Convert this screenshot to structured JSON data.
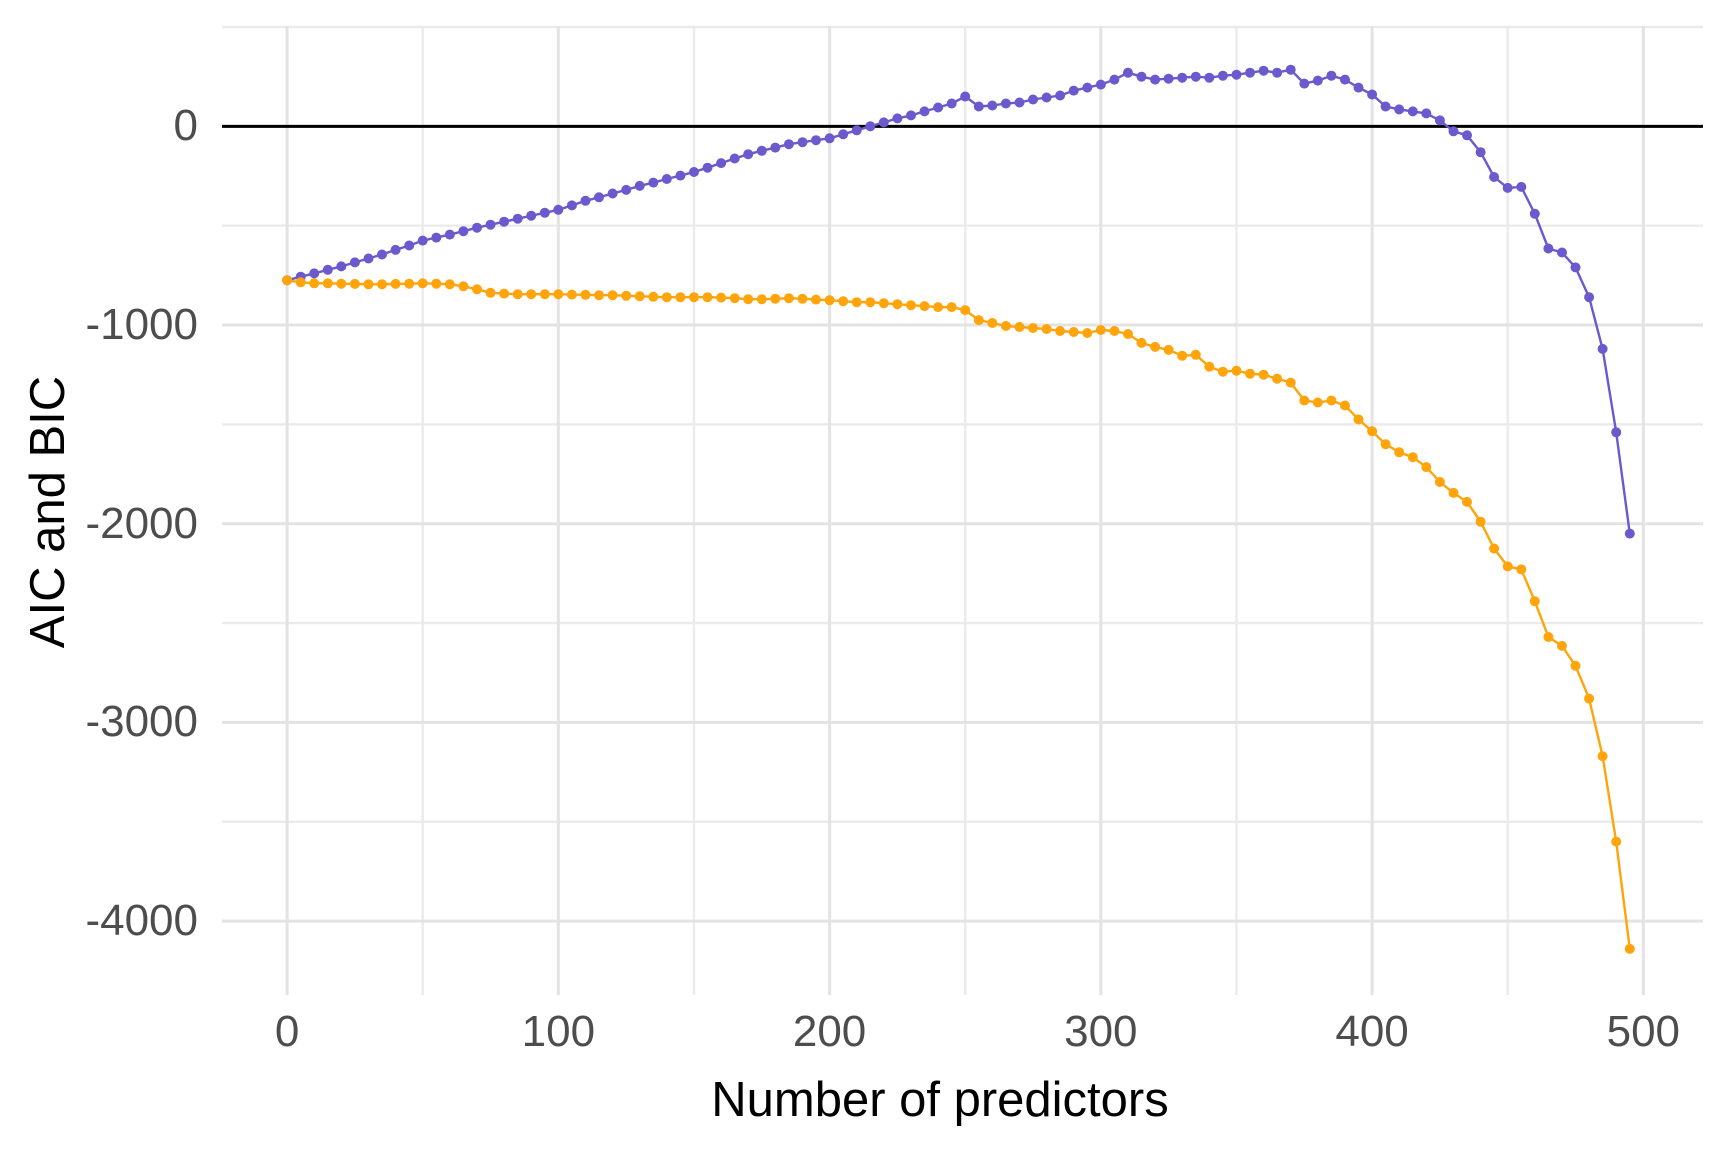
{
  "chart_data": {
    "type": "line",
    "title": "",
    "xlabel": "Number of predictors",
    "ylabel": "AIC and BIC",
    "grid": true,
    "legend": "none",
    "hline": 0,
    "xlim": [
      -24,
      522
    ],
    "ylim": [
      -4372,
      505
    ],
    "x_ticks": [
      {
        "value": 0,
        "label": "0"
      },
      {
        "value": 100,
        "label": "100"
      },
      {
        "value": 200,
        "label": "200"
      },
      {
        "value": 300,
        "label": "300"
      },
      {
        "value": 400,
        "label": "400"
      },
      {
        "value": 500,
        "label": "500"
      }
    ],
    "y_ticks": [
      {
        "value": 0,
        "label": "0"
      },
      {
        "value": -1000,
        "label": "-1000"
      },
      {
        "value": -2000,
        "label": "-2000"
      },
      {
        "value": -3000,
        "label": "-3000"
      },
      {
        "value": -4000,
        "label": "-4000"
      }
    ],
    "x_minor": [
      50,
      150,
      250,
      350,
      450
    ],
    "y_minor": [
      500,
      -500,
      -1500,
      -2500,
      -3500
    ],
    "style": {
      "background": "#ffffff",
      "grid_major": "#e3e3e3",
      "grid_minor": "#ebebeb",
      "axis_text": "#4d4d4d",
      "axis_title": "#000000",
      "zero_line": "#000000"
    },
    "x": [
      0,
      5,
      10,
      15,
      20,
      25,
      30,
      35,
      40,
      45,
      50,
      55,
      60,
      65,
      70,
      75,
      80,
      85,
      90,
      95,
      100,
      105,
      110,
      115,
      120,
      125,
      130,
      135,
      140,
      145,
      150,
      155,
      160,
      165,
      170,
      175,
      180,
      185,
      190,
      195,
      200,
      205,
      210,
      215,
      220,
      225,
      230,
      235,
      240,
      245,
      250,
      255,
      260,
      265,
      270,
      275,
      280,
      285,
      290,
      295,
      300,
      305,
      310,
      315,
      320,
      325,
      330,
      335,
      340,
      345,
      350,
      355,
      360,
      365,
      370,
      375,
      380,
      385,
      390,
      395,
      400,
      405,
      410,
      415,
      420,
      425,
      430,
      435,
      440,
      445,
      450,
      455,
      460,
      465,
      470,
      475,
      480,
      485,
      490,
      495
    ],
    "series": [
      {
        "name": "AIC",
        "color": "#6A5ACD",
        "values": [
          -775,
          -757,
          -740,
          -722,
          -705,
          -685,
          -665,
          -645,
          -622,
          -600,
          -575,
          -560,
          -545,
          -528,
          -510,
          -495,
          -480,
          -465,
          -450,
          -435,
          -420,
          -398,
          -375,
          -357,
          -338,
          -320,
          -300,
          -283,
          -265,
          -248,
          -230,
          -208,
          -185,
          -162,
          -140,
          -123,
          -107,
          -90,
          -80,
          -70,
          -60,
          -40,
          -20,
          0,
          20,
          40,
          55,
          75,
          95,
          115,
          150,
          100,
          105,
          115,
          120,
          135,
          145,
          155,
          180,
          195,
          210,
          235,
          270,
          250,
          235,
          240,
          245,
          250,
          245,
          255,
          260,
          270,
          280,
          270,
          285,
          215,
          230,
          255,
          235,
          195,
          160,
          100,
          85,
          75,
          65,
          30,
          -25,
          -45,
          -130,
          -255,
          -310,
          -305,
          -440,
          -615,
          -635,
          -710,
          -860,
          -1120,
          -1540,
          -2050
        ]
      },
      {
        "name": "BIC",
        "color": "#FFA40B",
        "values": [
          -775,
          -785,
          -790,
          -790,
          -792,
          -793,
          -795,
          -795,
          -793,
          -792,
          -790,
          -792,
          -795,
          -805,
          -820,
          -838,
          -842,
          -845,
          -845,
          -845,
          -845,
          -847,
          -848,
          -850,
          -850,
          -853,
          -855,
          -858,
          -860,
          -860,
          -860,
          -860,
          -862,
          -865,
          -870,
          -870,
          -868,
          -865,
          -868,
          -872,
          -875,
          -880,
          -885,
          -885,
          -890,
          -895,
          -900,
          -905,
          -910,
          -910,
          -925,
          -975,
          -990,
          -1005,
          -1010,
          -1015,
          -1020,
          -1030,
          -1035,
          -1040,
          -1025,
          -1030,
          -1045,
          -1090,
          -1110,
          -1125,
          -1155,
          -1150,
          -1210,
          -1235,
          -1230,
          -1245,
          -1250,
          -1270,
          -1290,
          -1380,
          -1390,
          -1380,
          -1405,
          -1475,
          -1535,
          -1600,
          -1640,
          -1665,
          -1715,
          -1790,
          -1845,
          -1890,
          -1990,
          -2125,
          -2215,
          -2230,
          -2390,
          -2570,
          -2615,
          -2715,
          -2880,
          -3170,
          -3600,
          -4140
        ]
      }
    ]
  }
}
